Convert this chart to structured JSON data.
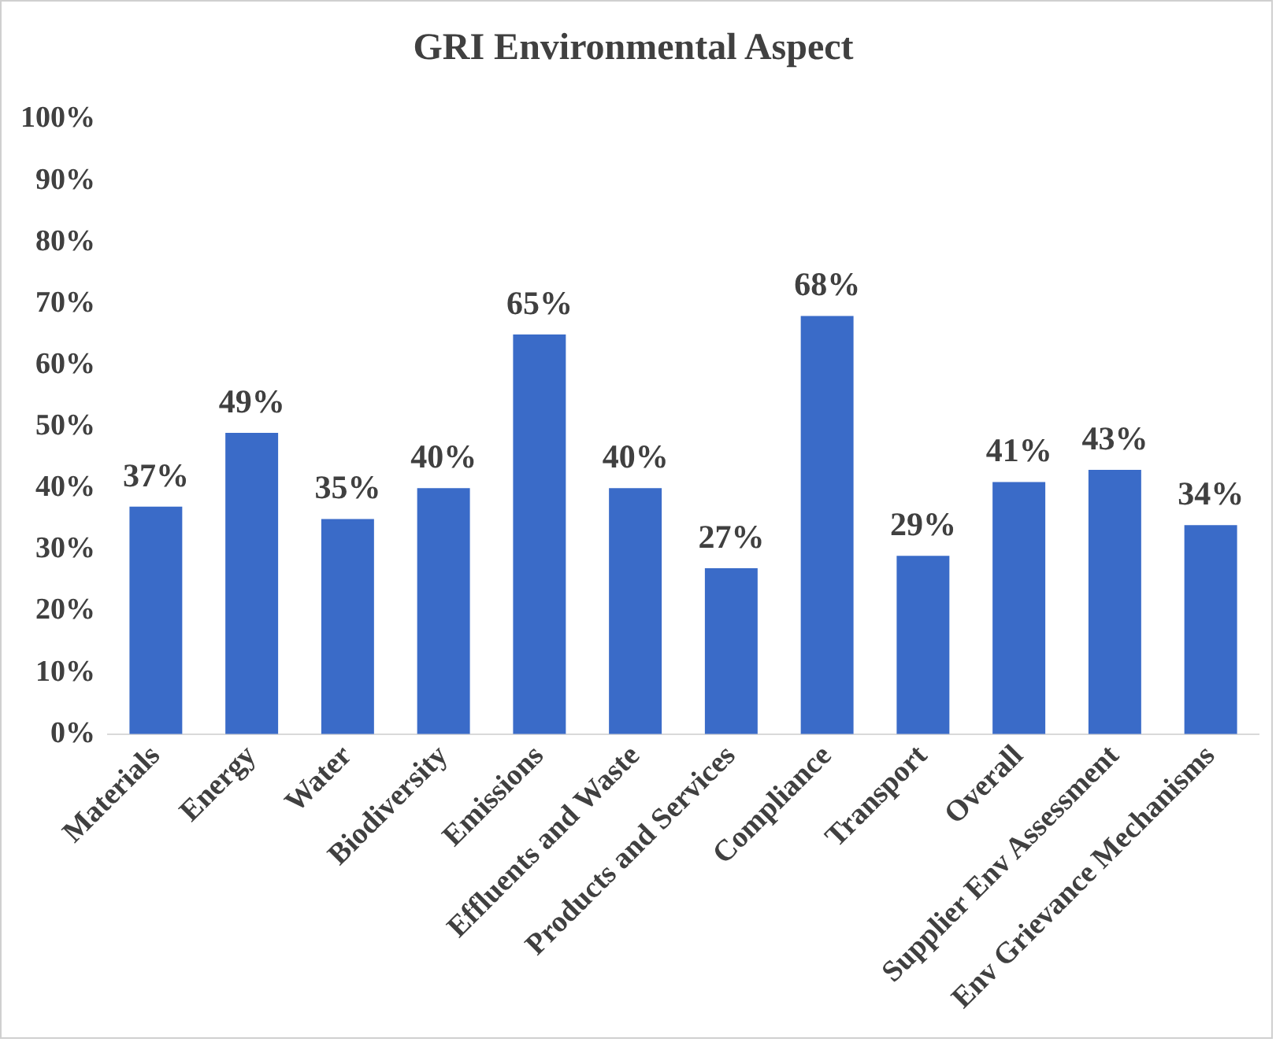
{
  "chart_data": {
    "type": "bar",
    "title": "GRI Environmental Aspect",
    "categories": [
      "Materials",
      "Energy",
      "Water",
      "Biodiversity",
      "Emissions",
      "Effluents and Waste",
      "Products and Services",
      "Compliance",
      "Transport",
      "Overall",
      "Supplier Env Assessment",
      "Env Grievance Mechanisms"
    ],
    "values": [
      37,
      49,
      35,
      40,
      65,
      40,
      27,
      68,
      29,
      41,
      43,
      34
    ],
    "color": "#3a6bc8",
    "ylim": [
      0,
      100
    ],
    "yticks": [
      {
        "value": 0,
        "label": "0%"
      },
      {
        "value": 10,
        "label": "10%"
      },
      {
        "value": 20,
        "label": "20%"
      },
      {
        "value": 30,
        "label": "30%"
      },
      {
        "value": 40,
        "label": "40%"
      },
      {
        "value": 50,
        "label": "50%"
      },
      {
        "value": 60,
        "label": "60%"
      },
      {
        "value": 70,
        "label": "70%"
      },
      {
        "value": 80,
        "label": "80%"
      },
      {
        "value": 90,
        "label": "90%"
      },
      {
        "value": 100,
        "label": "100%"
      }
    ],
    "value_labels": [
      "37%",
      "49%",
      "35%",
      "40%",
      "65%",
      "40%",
      "27%",
      "68%",
      "29%",
      "41%",
      "43%",
      "34%"
    ],
    "grid": false,
    "legend": false
  }
}
